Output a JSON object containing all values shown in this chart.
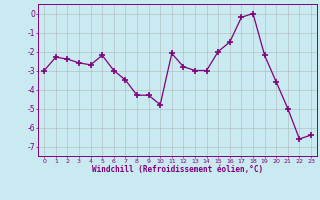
{
  "x": [
    0,
    1,
    2,
    3,
    4,
    5,
    6,
    7,
    8,
    9,
    10,
    11,
    12,
    13,
    14,
    15,
    16,
    17,
    18,
    19,
    20,
    21,
    22,
    23
  ],
  "y": [
    -3.0,
    -2.3,
    -2.4,
    -2.6,
    -2.7,
    -2.2,
    -3.0,
    -3.5,
    -4.3,
    -4.3,
    -4.8,
    -2.1,
    -2.8,
    -3.0,
    -3.0,
    -2.0,
    -1.5,
    -0.2,
    0.0,
    -2.2,
    -3.6,
    -5.0,
    -6.6,
    -6.4
  ],
  "line_color": "#800080",
  "marker": "+",
  "marker_size": 4,
  "marker_linewidth": 1.2,
  "bg_color": "#c8eaf0",
  "grid_color": "#aaaaaa",
  "xlabel": "Windchill (Refroidissement éolien,°C)",
  "ylim": [
    -7.5,
    0.5
  ],
  "ytick_labels": [
    "0",
    "-1",
    "-2",
    "-3",
    "-4",
    "-5",
    "-6",
    "-7"
  ],
  "ytick_vals": [
    0,
    -1,
    -2,
    -3,
    -4,
    -5,
    -6,
    -7
  ],
  "xtick_vals": [
    0,
    1,
    2,
    3,
    4,
    5,
    6,
    7,
    8,
    9,
    10,
    11,
    12,
    13,
    14,
    15,
    16,
    17,
    18,
    19,
    20,
    21,
    22,
    23
  ]
}
